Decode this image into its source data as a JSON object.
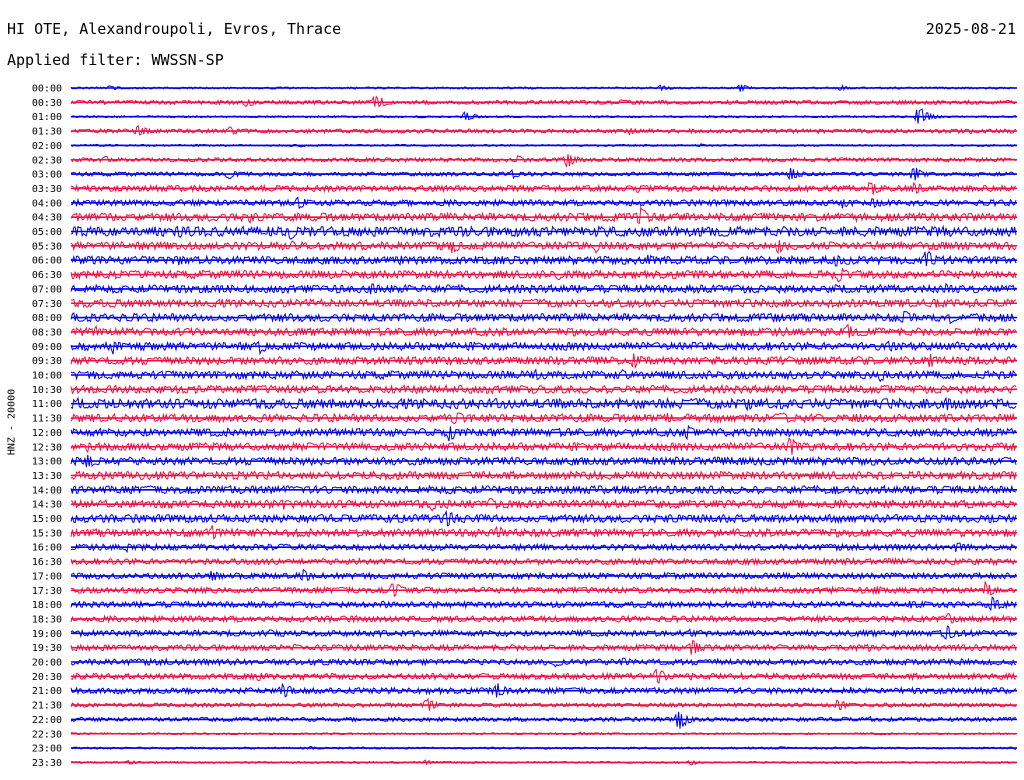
{
  "header": {
    "title": "HI OTE, Alexandroupoli, Evros, Thrace",
    "date": "2025-08-21",
    "filter": "Applied filter: WWSSN-SP"
  },
  "chart_data": {
    "type": "line",
    "ylabel": "HNZ - 20000",
    "row_labels": [
      "00:00",
      "00:30",
      "01:00",
      "01:30",
      "02:00",
      "02:30",
      "03:00",
      "03:30",
      "04:00",
      "04:30",
      "05:00",
      "05:30",
      "06:00",
      "06:30",
      "07:00",
      "07:30",
      "08:00",
      "08:30",
      "09:00",
      "09:30",
      "10:00",
      "10:30",
      "11:00",
      "11:30",
      "12:00",
      "12:30",
      "13:00",
      "13:30",
      "14:00",
      "14:30",
      "15:00",
      "15:30",
      "16:00",
      "16:30",
      "17:00",
      "17:30",
      "18:00",
      "18:30",
      "19:00",
      "19:30",
      "20:00",
      "20:30",
      "21:00",
      "21:30",
      "22:00",
      "22:30",
      "23:00",
      "23:30"
    ],
    "colors": [
      "#0000ee",
      "#ee1144"
    ],
    "noise_amplitude": [
      1,
      2,
      1,
      2,
      1,
      2,
      2,
      3,
      3,
      4,
      5,
      4,
      4,
      4,
      4,
      4,
      4,
      4,
      4,
      4,
      4,
      4,
      5,
      4,
      4,
      4,
      4,
      4,
      4,
      4,
      4,
      4,
      3,
      3,
      3,
      3,
      3,
      3,
      3,
      3,
      3,
      3,
      3,
      2,
      2,
      1,
      1,
      1
    ],
    "events": [
      [
        [
          110,
          3
        ],
        [
          660,
          4
        ],
        [
          740,
          4
        ],
        [
          840,
          3
        ]
      ],
      [
        [
          245,
          6
        ],
        [
          375,
          9
        ],
        [
          620,
          3
        ],
        [
          935,
          3
        ]
      ],
      [
        [
          465,
          6
        ],
        [
          918,
          12
        ]
      ],
      [
        [
          137,
          8
        ],
        [
          230,
          5
        ],
        [
          630,
          4
        ],
        [
          970,
          3
        ]
      ],
      [
        [
          300,
          2
        ],
        [
          700,
          2
        ]
      ],
      [
        [
          105,
          4
        ],
        [
          518,
          5
        ],
        [
          566,
          9
        ]
      ],
      [
        [
          228,
          6
        ],
        [
          512,
          5
        ],
        [
          790,
          8
        ],
        [
          913,
          10
        ]
      ],
      [
        [
          637,
          5
        ],
        [
          870,
          9
        ],
        [
          913,
          8
        ]
      ],
      [
        [
          298,
          8
        ],
        [
          245,
          4
        ],
        [
          842,
          6
        ],
        [
          873,
          7
        ]
      ],
      [
        [
          76,
          5
        ],
        [
          250,
          6
        ],
        [
          640,
          12
        ]
      ],
      [
        [
          76,
          7
        ],
        [
          178,
          8
        ],
        [
          290,
          10
        ],
        [
          700,
          6
        ]
      ],
      [
        [
          292,
          5
        ],
        [
          452,
          8
        ],
        [
          596,
          7
        ],
        [
          778,
          8
        ]
      ],
      [
        [
          176,
          7
        ],
        [
          400,
          5
        ],
        [
          648,
          6
        ],
        [
          835,
          7
        ],
        [
          926,
          12
        ]
      ],
      [
        [
          118,
          5
        ],
        [
          332,
          5
        ],
        [
          558,
          6
        ],
        [
          839,
          9
        ],
        [
          988,
          3
        ]
      ],
      [
        [
          218,
          5
        ],
        [
          370,
          7
        ],
        [
          835,
          5
        ],
        [
          945,
          6
        ]
      ],
      [
        [
          850,
          5
        ],
        [
          935,
          6
        ]
      ],
      [
        [
          74,
          7
        ],
        [
          903,
          10
        ],
        [
          950,
          6
        ]
      ],
      [
        [
          96,
          6
        ],
        [
          149,
          4
        ],
        [
          846,
          9
        ],
        [
          1000,
          4
        ]
      ],
      [
        [
          113,
          8
        ],
        [
          260,
          8
        ],
        [
          888,
          7
        ],
        [
          957,
          6
        ]
      ],
      [
        [
          412,
          4
        ],
        [
          633,
          9
        ],
        [
          930,
          8
        ]
      ],
      [
        [
          535,
          6
        ],
        [
          622,
          6
        ],
        [
          880,
          7
        ]
      ],
      [
        [
          160,
          6
        ],
        [
          520,
          5
        ],
        [
          860,
          4
        ]
      ],
      [
        [
          78,
          7
        ],
        [
          114,
          6
        ],
        [
          482,
          5
        ],
        [
          748,
          9
        ],
        [
          947,
          8
        ]
      ],
      [
        [
          454,
          9
        ],
        [
          666,
          6
        ],
        [
          780,
          9
        ]
      ],
      [
        [
          449,
          10
        ],
        [
          686,
          9
        ],
        [
          748,
          5
        ],
        [
          943,
          4
        ]
      ],
      [
        [
          87,
          6
        ],
        [
          130,
          4
        ],
        [
          308,
          5
        ],
        [
          388,
          5
        ],
        [
          790,
          11
        ]
      ],
      [
        [
          88,
          11
        ],
        [
          740,
          5
        ]
      ],
      [
        [
          90,
          4
        ],
        [
          575,
          3
        ],
        [
          880,
          4
        ]
      ],
      [
        [
          75,
          5
        ],
        [
          620,
          4
        ],
        [
          835,
          5
        ],
        [
          1000,
          3
        ]
      ],
      [
        [
          283,
          6
        ],
        [
          432,
          7
        ],
        [
          490,
          7
        ],
        [
          560,
          4
        ]
      ],
      [
        [
          187,
          5
        ],
        [
          446,
          10
        ],
        [
          666,
          5
        ],
        [
          692,
          5
        ],
        [
          988,
          6
        ]
      ],
      [
        [
          212,
          8
        ],
        [
          497,
          8
        ],
        [
          262,
          4
        ]
      ],
      [
        [
          127,
          5
        ],
        [
          432,
          4
        ],
        [
          956,
          8
        ]
      ],
      [
        [
          210,
          3
        ],
        [
          660,
          3
        ],
        [
          953,
          4
        ]
      ],
      [
        [
          211,
          7
        ],
        [
          303,
          7
        ],
        [
          955,
          3
        ]
      ],
      [
        [
          393,
          10
        ],
        [
          875,
          6
        ],
        [
          985,
          9
        ]
      ],
      [
        [
          382,
          5
        ],
        [
          910,
          5
        ],
        [
          992,
          10
        ]
      ],
      [
        [
          355,
          4
        ],
        [
          948,
          7
        ]
      ],
      [
        [
          270,
          4
        ],
        [
          690,
          5
        ],
        [
          946,
          9
        ]
      ],
      [
        [
          295,
          4
        ],
        [
          691,
          10
        ],
        [
          868,
          4
        ]
      ],
      [
        [
          555,
          6
        ],
        [
          622,
          5
        ],
        [
          960,
          4
        ]
      ],
      [
        [
          258,
          5
        ],
        [
          656,
          10
        ],
        [
          690,
          4
        ]
      ],
      [
        [
          282,
          9
        ],
        [
          497,
          9
        ],
        [
          850,
          4
        ]
      ],
      [
        [
          426,
          8
        ],
        [
          838,
          7
        ]
      ],
      [
        [
          678,
          12
        ],
        [
          870,
          3
        ]
      ],
      [
        [
          580,
          2
        ]
      ],
      [
        [
          310,
          2
        ],
        [
          780,
          2
        ]
      ],
      [
        [
          129,
          3
        ],
        [
          425,
          3
        ],
        [
          690,
          3
        ]
      ]
    ]
  }
}
